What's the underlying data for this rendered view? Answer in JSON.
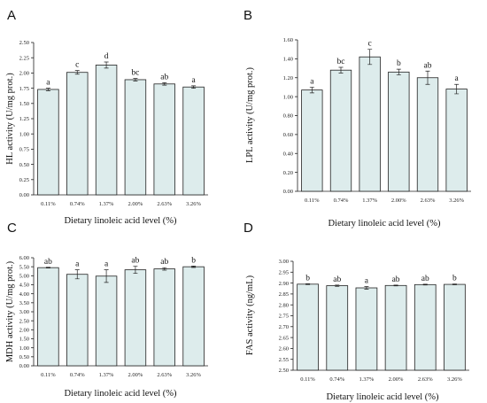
{
  "chart_data": [
    {
      "type": "bar",
      "panel": "A",
      "ylabel": "HL activity (U/mg prot.)",
      "xlabel": "Dietary linoleic acid level (%)",
      "categories": [
        "0.11%",
        "0.74%",
        "1.37%",
        "2.00%",
        "2.63%",
        "3.26%"
      ],
      "values": [
        1.73,
        2.01,
        2.13,
        1.89,
        1.82,
        1.77
      ],
      "errors": [
        0.02,
        0.03,
        0.05,
        0.02,
        0.02,
        0.02
      ],
      "letters": [
        "a",
        "c",
        "d",
        "bc",
        "ab",
        "a"
      ],
      "ylim": [
        0,
        2.5
      ],
      "yticks": [
        "0.00",
        "0.25",
        "0.50",
        "0.75",
        "1.00",
        "1.25",
        "1.50",
        "1.75",
        "2.00",
        "2.25",
        "2.50"
      ]
    },
    {
      "type": "bar",
      "panel": "B",
      "ylabel": "LPL activity (U/mg prot.)",
      "xlabel": "Dietary linoleic acid level (%)",
      "categories": [
        "0.11%",
        "0.74%",
        "1.37%",
        "2.00%",
        "2.63%",
        "3.26%"
      ],
      "values": [
        1.07,
        1.28,
        1.42,
        1.26,
        1.2,
        1.08
      ],
      "errors": [
        0.03,
        0.03,
        0.08,
        0.03,
        0.07,
        0.05
      ],
      "letters": [
        "a",
        "bc",
        "c",
        "b",
        "ab",
        "a"
      ],
      "ylim": [
        0,
        1.6
      ],
      "yticks": [
        "0.00",
        "0.20",
        "0.40",
        "0.60",
        "0.80",
        "1.00",
        "1.20",
        "1.40",
        "1.60"
      ]
    },
    {
      "type": "bar",
      "panel": "C",
      "ylabel": "MDH activity (U/mg prot.)",
      "xlabel": "Dietary linoleic acid level (%)",
      "categories": [
        "0.11%",
        "0.74%",
        "1.37%",
        "2.00%",
        "2.63%",
        "3.26%"
      ],
      "values": [
        5.45,
        5.08,
        4.98,
        5.33,
        5.38,
        5.5
      ],
      "errors": [
        0.02,
        0.25,
        0.35,
        0.2,
        0.07,
        0.04
      ],
      "letters": [
        "ab",
        "a",
        "a",
        "ab",
        "ab",
        "b"
      ],
      "ylim": [
        0,
        6.0
      ],
      "yticks": [
        "0.00",
        "0.50",
        "1.00",
        "1.50",
        "2.00",
        "2.50",
        "3.00",
        "3.50",
        "4.00",
        "4.50",
        "5.00",
        "5.50",
        "6.00"
      ]
    },
    {
      "type": "bar",
      "panel": "D",
      "ylabel": "FAS activity (ng/mL)",
      "xlabel": "Dietary linoleic acid level (%)",
      "categories": [
        "0.11%",
        "0.74%",
        "1.37%",
        "2.00%",
        "2.63%",
        "3.26%"
      ],
      "values": [
        2.895,
        2.888,
        2.878,
        2.889,
        2.893,
        2.894
      ],
      "errors": [
        0.002,
        0.003,
        0.006,
        0.002,
        0.002,
        0.002
      ],
      "letters": [
        "b",
        "ab",
        "a",
        "ab",
        "ab",
        "b"
      ],
      "ylim": [
        2.5,
        3.0
      ],
      "yticks": [
        "2.50",
        "2.55",
        "2.60",
        "2.65",
        "2.70",
        "2.75",
        "2.80",
        "2.85",
        "2.90",
        "2.95",
        "3.00"
      ]
    }
  ]
}
